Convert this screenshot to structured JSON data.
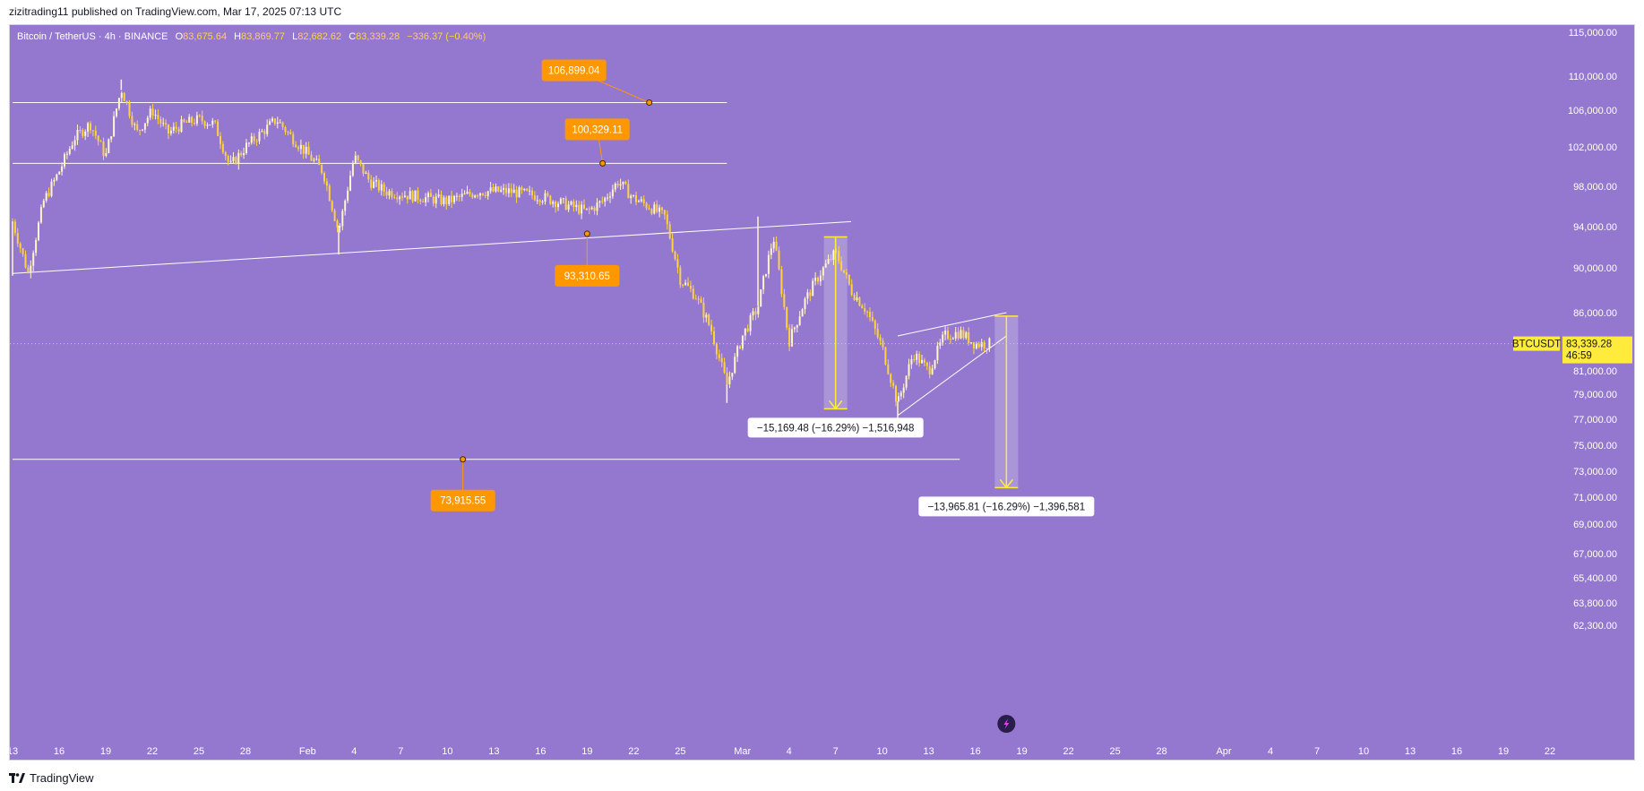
{
  "publish_line": "zizitrading11 published on TradingView.com, Mar 17, 2025 07:13 UTC",
  "header": {
    "symbol": "Bitcoin / TetherUS · 4h · BINANCE",
    "open_label": "O",
    "open": "83,675.64",
    "high_label": "H",
    "high": "83,869.77",
    "low_label": "L",
    "low": "82,682.62",
    "close_label": "C",
    "close": "83,339.28",
    "change": "−336.37 (−0.40%)"
  },
  "footer": {
    "brand": "TradingView"
  },
  "colors": {
    "background": "#9478cf",
    "candle": "#ffd23e",
    "candle_light": "#fff6cc",
    "callout": "#ff9800",
    "line": "#ffffff",
    "price_tag": "#ffeb3b"
  },
  "chart_data": {
    "type": "candlestick",
    "symbol": "BTCUSDT",
    "interval": "4h",
    "exchange": "BINANCE",
    "last_price": 83339.28,
    "last_price_label": "83,339.28",
    "countdown": "46:59",
    "price_axis": [
      "115,000.00",
      "110,000.00",
      "106,000.00",
      "102,000.00",
      "98,000.00",
      "94,000.00",
      "90,000.00",
      "86,000.00",
      "81,000.00",
      "79,000.00",
      "77,000.00",
      "75,000.00",
      "73,000.00",
      "71,000.00",
      "69,000.00",
      "67,000.00",
      "65,400.00",
      "63,800.00",
      "62,300.00"
    ],
    "price_axis_values": [
      115000,
      110000,
      106000,
      102000,
      98000,
      94000,
      90000,
      86000,
      81000,
      79000,
      77000,
      75000,
      73000,
      71000,
      69000,
      67000,
      65400,
      63800,
      62300
    ],
    "x_axis": [
      "13",
      "16",
      "19",
      "22",
      "25",
      "28",
      "Feb",
      "4",
      "7",
      "10",
      "13",
      "16",
      "19",
      "22",
      "25",
      "Mar",
      "4",
      "7",
      "10",
      "13",
      "16",
      "19",
      "22",
      "25",
      "28",
      "Apr",
      "4",
      "7",
      "10",
      "13",
      "16",
      "19",
      "22"
    ],
    "x_axis_dates": [
      "2025-01-13",
      "2025-01-16",
      "2025-01-19",
      "2025-01-22",
      "2025-01-25",
      "2025-01-28",
      "2025-02-01",
      "2025-02-04",
      "2025-02-07",
      "2025-02-10",
      "2025-02-13",
      "2025-02-16",
      "2025-02-19",
      "2025-02-22",
      "2025-02-25",
      "2025-03-01",
      "2025-03-04",
      "2025-03-07",
      "2025-03-10",
      "2025-03-13",
      "2025-03-16",
      "2025-03-19",
      "2025-03-22",
      "2025-03-25",
      "2025-03-28",
      "2025-04-01",
      "2025-04-04",
      "2025-04-07",
      "2025-04-10",
      "2025-04-13",
      "2025-04-16",
      "2025-04-19",
      "2025-04-22"
    ],
    "price_path": [
      [
        "2025-01-13",
        94500
      ],
      [
        "2025-01-14",
        89500
      ],
      [
        "2025-01-15",
        96500
      ],
      [
        "2025-01-16",
        99500
      ],
      [
        "2025-01-17",
        103000
      ],
      [
        "2025-01-18",
        104500
      ],
      [
        "2025-01-19",
        101000
      ],
      [
        "2025-01-20",
        108500
      ],
      [
        "2025-01-21",
        103500
      ],
      [
        "2025-01-22",
        106000
      ],
      [
        "2025-01-23",
        103500
      ],
      [
        "2025-01-24",
        104500
      ],
      [
        "2025-01-25",
        105000
      ],
      [
        "2025-01-26",
        104500
      ],
      [
        "2025-01-27",
        100000
      ],
      [
        "2025-01-28",
        102000
      ],
      [
        "2025-01-29",
        103500
      ],
      [
        "2025-01-30",
        105000
      ],
      [
        "2025-01-31",
        103000
      ],
      [
        "2025-02-02",
        99500
      ],
      [
        "2025-02-03",
        93500
      ],
      [
        "2025-02-04",
        101000
      ],
      [
        "2025-02-05",
        98500
      ],
      [
        "2025-02-06",
        97500
      ],
      [
        "2025-02-08",
        97000
      ],
      [
        "2025-02-10",
        96500
      ],
      [
        "2025-02-12",
        97500
      ],
      [
        "2025-02-14",
        97500
      ],
      [
        "2025-02-16",
        97000
      ],
      [
        "2025-02-18",
        96000
      ],
      [
        "2025-02-19",
        95500
      ],
      [
        "2025-02-20",
        96500
      ],
      [
        "2025-02-21",
        98500
      ],
      [
        "2025-02-22",
        96800
      ],
      [
        "2025-02-23",
        96000
      ],
      [
        "2025-02-24",
        95000
      ],
      [
        "2025-02-25",
        89000
      ],
      [
        "2025-02-26",
        87500
      ],
      [
        "2025-02-27",
        84500
      ],
      [
        "2025-02-28",
        79800
      ],
      [
        "2025-03-01",
        84000
      ],
      [
        "2025-03-02",
        86500
      ],
      [
        "2025-03-03",
        93000
      ],
      [
        "2025-03-04",
        83500
      ],
      [
        "2025-03-05",
        87000
      ],
      [
        "2025-03-06",
        89500
      ],
      [
        "2025-03-07",
        91500
      ],
      [
        "2025-03-08",
        88000
      ],
      [
        "2025-03-09",
        86200
      ],
      [
        "2025-03-10",
        83000
      ],
      [
        "2025-03-11",
        78200
      ],
      [
        "2025-03-12",
        82500
      ],
      [
        "2025-03-13",
        81000
      ],
      [
        "2025-03-14",
        84000
      ],
      [
        "2025-03-15",
        84300
      ],
      [
        "2025-03-16",
        83300
      ],
      [
        "2025-03-17",
        83339
      ]
    ],
    "lows": [
      [
        "2025-01-13",
        89300
      ],
      [
        "2025-02-03",
        91300
      ],
      [
        "2025-02-28",
        78300
      ],
      [
        "2025-03-11",
        76600
      ]
    ],
    "highs": [
      [
        "2025-01-20",
        109600
      ],
      [
        "2025-03-02",
        95000
      ],
      [
        "2025-03-07",
        92800
      ]
    ],
    "horizontal_levels": [
      {
        "price": 106899.04,
        "label": "106,899.04",
        "from": "2025-01-13",
        "to": "2025-02-28",
        "anchor": "2025-02-23"
      },
      {
        "price": 100329.11,
        "label": "100,329.11",
        "from": "2025-01-13",
        "to": "2025-02-28",
        "anchor": "2025-02-20"
      },
      {
        "price": 73915.55,
        "label": "73,915.55",
        "from": "2025-01-13",
        "to": "2025-03-15",
        "anchor": "2025-02-11"
      }
    ],
    "trendline": {
      "from": [
        "2025-01-13",
        89500
      ],
      "to": [
        "2025-03-08",
        94500
      ],
      "point": {
        "date": "2025-02-19",
        "price": 93310.65,
        "label": "93,310.65"
      }
    },
    "wedge": {
      "upper": [
        [
          "2025-03-11",
          84000
        ],
        [
          "2025-03-18",
          86000
        ]
      ],
      "lower": [
        [
          "2025-03-11",
          77300
        ],
        [
          "2025-03-18",
          84000
        ]
      ]
    },
    "measurements": [
      {
        "from_date": "2025-03-07",
        "from_price": 93000,
        "to_price": 77830,
        "label": "−15,169.48 (−16.29%) −1,516,948"
      },
      {
        "from_date": "2025-03-18",
        "from_price": 85700,
        "to_price": 71734,
        "label": "−13,965.81 (−16.29%) −1,396,581"
      }
    ],
    "grid": false
  }
}
